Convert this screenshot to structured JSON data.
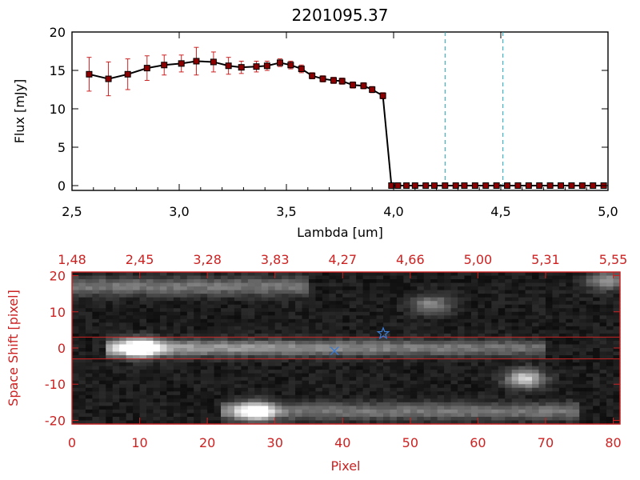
{
  "chart_data": [
    {
      "type": "line",
      "title": "2201095.37",
      "xlabel": "Lambda [um]",
      "ylabel": "Flux [mJy]",
      "xlim": [
        2.5,
        5.0
      ],
      "ylim": [
        0,
        20
      ],
      "x_ticks": [
        "2,5",
        "3,0",
        "3,5",
        "4,0",
        "4,5",
        "5,0"
      ],
      "y_ticks": [
        "0",
        "5",
        "10",
        "15",
        "20"
      ],
      "series": [
        {
          "x": [
            2.58,
            2.67,
            2.76,
            2.85,
            2.93,
            3.01,
            3.08,
            3.16,
            3.23,
            3.29,
            3.36,
            3.41,
            3.47,
            3.52,
            3.57,
            3.62,
            3.67,
            3.72,
            3.76,
            3.81,
            3.86,
            3.9,
            3.95,
            3.99,
            4.02,
            4.06,
            4.1,
            4.15,
            4.19,
            4.24,
            4.29,
            4.33,
            4.38,
            4.43,
            4.48,
            4.53,
            4.58,
            4.63,
            4.68,
            4.73,
            4.78,
            4.83,
            4.88,
            4.93,
            4.98
          ],
          "y": [
            14.5,
            13.9,
            14.5,
            15.3,
            15.7,
            15.9,
            16.2,
            16.1,
            15.6,
            15.4,
            15.5,
            15.6,
            16.0,
            15.7,
            15.2,
            14.3,
            13.9,
            13.7,
            13.6,
            13.1,
            13.0,
            12.5,
            11.7,
            0,
            0,
            0,
            0,
            0,
            0,
            0,
            0,
            0,
            0,
            0,
            0,
            0,
            0,
            0,
            0,
            0,
            0,
            0,
            0,
            0,
            0
          ],
          "errors": [
            2.2,
            2.2,
            2.0,
            1.6,
            1.3,
            1.1,
            1.8,
            1.3,
            1.1,
            0.8,
            0.7,
            0.6,
            0.5,
            0.5,
            0.5,
            0.4,
            0.4,
            0.4,
            0.4,
            0.4,
            0.4,
            0.4,
            0.4,
            0,
            0,
            0,
            0,
            0,
            0,
            0,
            0,
            0,
            0,
            0,
            0,
            0,
            0,
            0,
            0,
            0,
            0,
            0,
            0,
            0,
            0
          ]
        }
      ],
      "vlines": [
        4.24,
        4.51
      ],
      "colors": {
        "line": "#000000",
        "marker": "#8b0000",
        "error": "#cc2222",
        "vline": "#1aa3b8"
      }
    },
    {
      "type": "heatmap",
      "xlabel": "Pixel",
      "ylabel": "Space Shift [pixel]",
      "xlim": [
        0,
        81
      ],
      "ylim": [
        -21,
        21
      ],
      "x_ticks": [
        "0",
        "10",
        "20",
        "30",
        "40",
        "50",
        "60",
        "70",
        "80"
      ],
      "y_ticks": [
        "-20",
        "-10",
        "0",
        "10",
        "20"
      ],
      "top_axis_ticks": [
        "1,48",
        "2,45",
        "3,28",
        "3,83",
        "4,27",
        "4,66",
        "5,00",
        "5,31",
        "5,55"
      ],
      "hlines": [
        3,
        -3
      ],
      "markers": [
        {
          "shape": "star",
          "x": 46,
          "y": 4
        },
        {
          "shape": "cross",
          "x": 38.8,
          "y": -0.8
        }
      ],
      "sources": [
        {
          "x": 10,
          "y": 0,
          "peak": 1.0
        },
        {
          "x": 27,
          "y": -17.5,
          "peak": 0.9
        },
        {
          "x": 67,
          "y": -8.5,
          "peak": 0.75
        },
        {
          "x": 53,
          "y": 12,
          "peak": 0.45
        },
        {
          "x": 79,
          "y": 18.5,
          "peak": 0.5
        }
      ],
      "colors": {
        "axis": "#cc2222",
        "marker": "#3a7ad0",
        "line": "#cc2222"
      }
    }
  ],
  "colors": {
    "background": "#ffffff",
    "axis": "#000000",
    "red_axis": "#cc2222"
  }
}
